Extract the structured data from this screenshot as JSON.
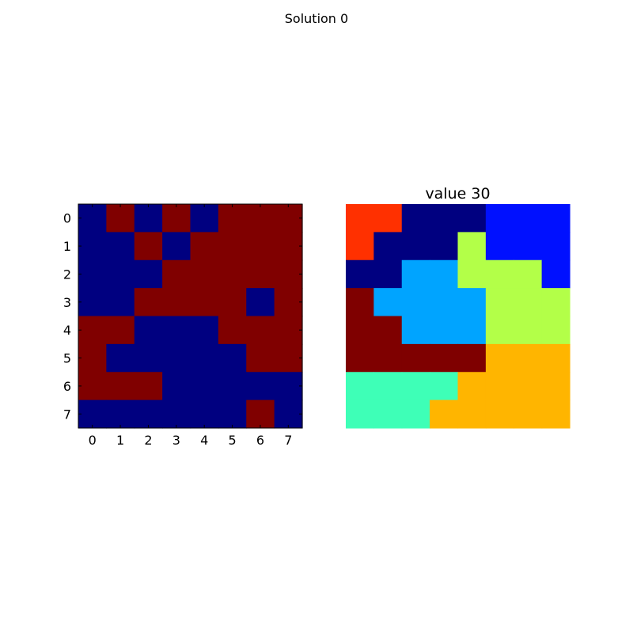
{
  "figure": {
    "title": "Solution 0"
  },
  "colors": {
    "0": "#000080",
    "1": "#800000",
    "2": "#ff3000",
    "3": "#000080",
    "4": "#0010ff",
    "5": "#b3ff48",
    "6": "#00a4ff",
    "7": "#7f0000",
    "8": "#ffb500",
    "9": "#3effb7"
  },
  "chart_data": [
    {
      "type": "heatmap",
      "title": "",
      "x_ticks": [
        "0",
        "1",
        "2",
        "3",
        "4",
        "5",
        "6",
        "7"
      ],
      "y_ticks": [
        "0",
        "1",
        "2",
        "3",
        "4",
        "5",
        "6",
        "7"
      ],
      "show_axes": true,
      "grid": false,
      "values": [
        [
          0,
          1,
          0,
          1,
          0,
          1,
          1,
          1
        ],
        [
          0,
          0,
          1,
          0,
          1,
          1,
          1,
          1
        ],
        [
          0,
          0,
          0,
          1,
          1,
          1,
          1,
          1
        ],
        [
          0,
          0,
          1,
          1,
          1,
          1,
          0,
          1
        ],
        [
          1,
          1,
          0,
          0,
          0,
          1,
          1,
          1
        ],
        [
          1,
          0,
          0,
          0,
          0,
          0,
          1,
          1
        ],
        [
          1,
          1,
          1,
          0,
          0,
          0,
          0,
          0
        ],
        [
          0,
          0,
          0,
          0,
          0,
          0,
          1,
          0
        ]
      ]
    },
    {
      "type": "heatmap",
      "title": "value 30",
      "show_axes": false,
      "grid": false,
      "values": [
        [
          2,
          2,
          3,
          3,
          3,
          4,
          4,
          4
        ],
        [
          2,
          3,
          3,
          3,
          5,
          4,
          4,
          4
        ],
        [
          3,
          3,
          6,
          6,
          5,
          5,
          5,
          4
        ],
        [
          7,
          6,
          6,
          6,
          6,
          5,
          5,
          5
        ],
        [
          7,
          7,
          6,
          6,
          6,
          5,
          5,
          5
        ],
        [
          7,
          7,
          7,
          7,
          7,
          8,
          8,
          8
        ],
        [
          9,
          9,
          9,
          9,
          8,
          8,
          8,
          8
        ],
        [
          9,
          9,
          9,
          8,
          8,
          8,
          8,
          8
        ]
      ]
    }
  ]
}
